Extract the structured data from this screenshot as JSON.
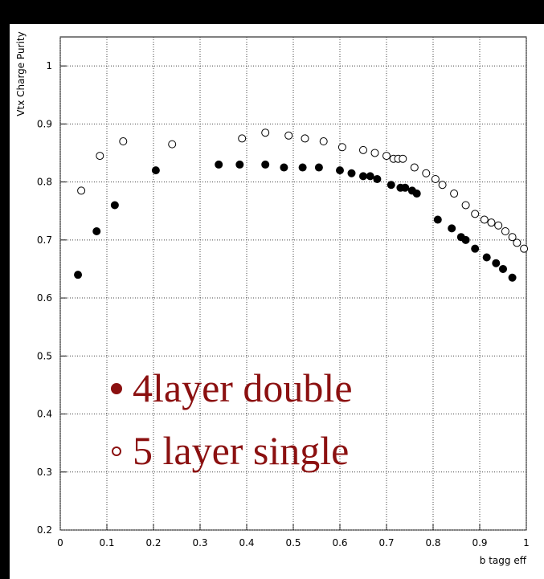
{
  "chart_data": {
    "type": "scatter",
    "xlabel": "b tagg eff",
    "ylabel": "Vtx Charge Purity",
    "xlim": [
      0,
      1
    ],
    "ylim": [
      0.2,
      1.05
    ],
    "xticks": [
      0,
      0.1,
      0.2,
      0.3,
      0.4,
      0.5,
      0.6,
      0.7,
      0.8,
      0.9,
      1
    ],
    "yticks": [
      0.2,
      0.3,
      0.4,
      0.5,
      0.6,
      0.7,
      0.8,
      0.9,
      1
    ],
    "grid": true,
    "series": [
      {
        "name": "4layer double",
        "color": "#000000",
        "filled": true,
        "x": [
          0.038,
          0.078,
          0.117,
          0.205,
          0.34,
          0.385,
          0.44,
          0.48,
          0.52,
          0.555,
          0.6,
          0.625,
          0.65,
          0.665,
          0.68,
          0.71,
          0.73,
          0.74,
          0.755,
          0.765,
          0.81,
          0.84,
          0.86,
          0.87,
          0.89,
          0.915,
          0.935,
          0.95,
          0.97
        ],
        "values": [
          0.64,
          0.715,
          0.76,
          0.82,
          0.83,
          0.83,
          0.83,
          0.825,
          0.825,
          0.825,
          0.82,
          0.815,
          0.81,
          0.81,
          0.805,
          0.795,
          0.79,
          0.79,
          0.785,
          0.78,
          0.735,
          0.72,
          0.705,
          0.7,
          0.685,
          0.67,
          0.66,
          0.65,
          0.635
        ]
      },
      {
        "name": "5 layer single",
        "color": "#000000",
        "filled": false,
        "x": [
          0.045,
          0.085,
          0.135,
          0.24,
          0.39,
          0.44,
          0.49,
          0.525,
          0.565,
          0.605,
          0.65,
          0.675,
          0.7,
          0.715,
          0.725,
          0.735,
          0.76,
          0.785,
          0.805,
          0.82,
          0.845,
          0.87,
          0.89,
          0.91,
          0.925,
          0.94,
          0.955,
          0.97,
          0.98,
          0.995
        ],
        "values": [
          0.785,
          0.845,
          0.87,
          0.865,
          0.875,
          0.885,
          0.88,
          0.875,
          0.87,
          0.86,
          0.855,
          0.85,
          0.845,
          0.84,
          0.84,
          0.84,
          0.825,
          0.815,
          0.805,
          0.795,
          0.78,
          0.76,
          0.745,
          0.735,
          0.73,
          0.725,
          0.715,
          0.705,
          0.695,
          0.685
        ]
      }
    ]
  }
}
